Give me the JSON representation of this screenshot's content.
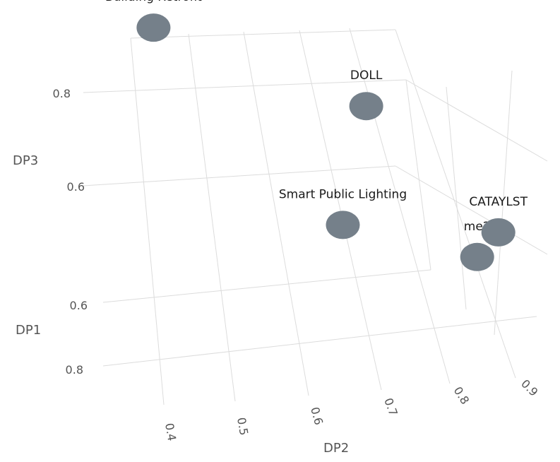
{
  "chart_data": {
    "type": "scatter",
    "axes": {
      "x": {
        "label": "DP1",
        "ticks": [
          "0.6",
          "0.8"
        ]
      },
      "y": {
        "label": "DP2",
        "ticks": [
          "0.4",
          "0.5",
          "0.6",
          "0.7",
          "0.8",
          "0.9"
        ]
      },
      "z": {
        "label": "DP3",
        "ticks": [
          "0.6",
          "0.8"
        ]
      }
    },
    "points": [
      {
        "label": "Building Retrofit",
        "dp1": 0.45,
        "dp2": 0.38,
        "dp3": 0.93
      },
      {
        "label": "DOLL",
        "dp1": 0.55,
        "dp2": 0.74,
        "dp3": 0.82
      },
      {
        "label": "Smart Public Lighting",
        "dp1": 0.6,
        "dp2": 0.62,
        "dp3": 0.65
      },
      {
        "label": "me2",
        "dp1": 0.72,
        "dp2": 0.86,
        "dp3": 0.63
      },
      {
        "label": "CATAYLST",
        "dp1": 0.86,
        "dp2": 0.92,
        "dp3": 0.72
      }
    ],
    "point_color": "#75808a",
    "grid": true,
    "legend": "none"
  }
}
